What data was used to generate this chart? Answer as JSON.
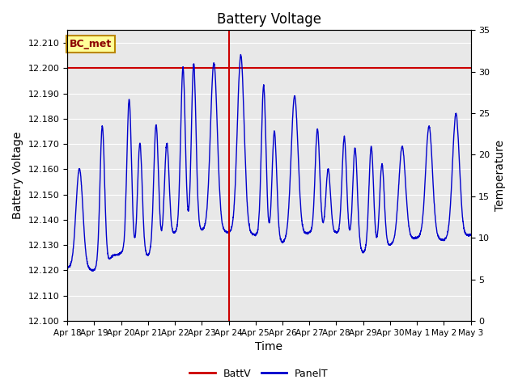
{
  "title": "Battery Voltage",
  "xlabel": "Time",
  "ylabel_left": "Battery Voltage",
  "ylabel_right": "Temperature",
  "left_ylim": [
    12.1,
    12.215
  ],
  "right_ylim": [
    0,
    35
  ],
  "left_yticks": [
    12.1,
    12.11,
    12.12,
    12.13,
    12.14,
    12.15,
    12.16,
    12.17,
    12.18,
    12.19,
    12.2,
    12.21
  ],
  "right_yticks": [
    0,
    5,
    10,
    15,
    20,
    25,
    30,
    35
  ],
  "battv_value": 12.2,
  "battv_color": "#cc0000",
  "panelt_color": "#0000cc",
  "vline_color": "#cc0000",
  "vline_x": 6.0,
  "background_color": "#e8e8e8",
  "legend_label_battv": "BattV",
  "legend_label_panelt": "PanelT",
  "annotation_text": "BC_met",
  "annotation_bg": "#ffff99",
  "annotation_border": "#bb8800",
  "x_tick_labels": [
    "Apr 18",
    "Apr 19",
    "Apr 20",
    "Apr 21",
    "Apr 22",
    "Apr 23",
    "Apr 24",
    "Apr 25",
    "Apr 26",
    "Apr 27",
    "Apr 28",
    "Apr 29",
    "Apr 30",
    "May 1",
    "May 2",
    "May 3"
  ],
  "grid_color": "#ffffff",
  "title_fontsize": 12,
  "axis_label_fontsize": 10,
  "figsize": [
    6.4,
    4.8
  ],
  "dpi": 100
}
